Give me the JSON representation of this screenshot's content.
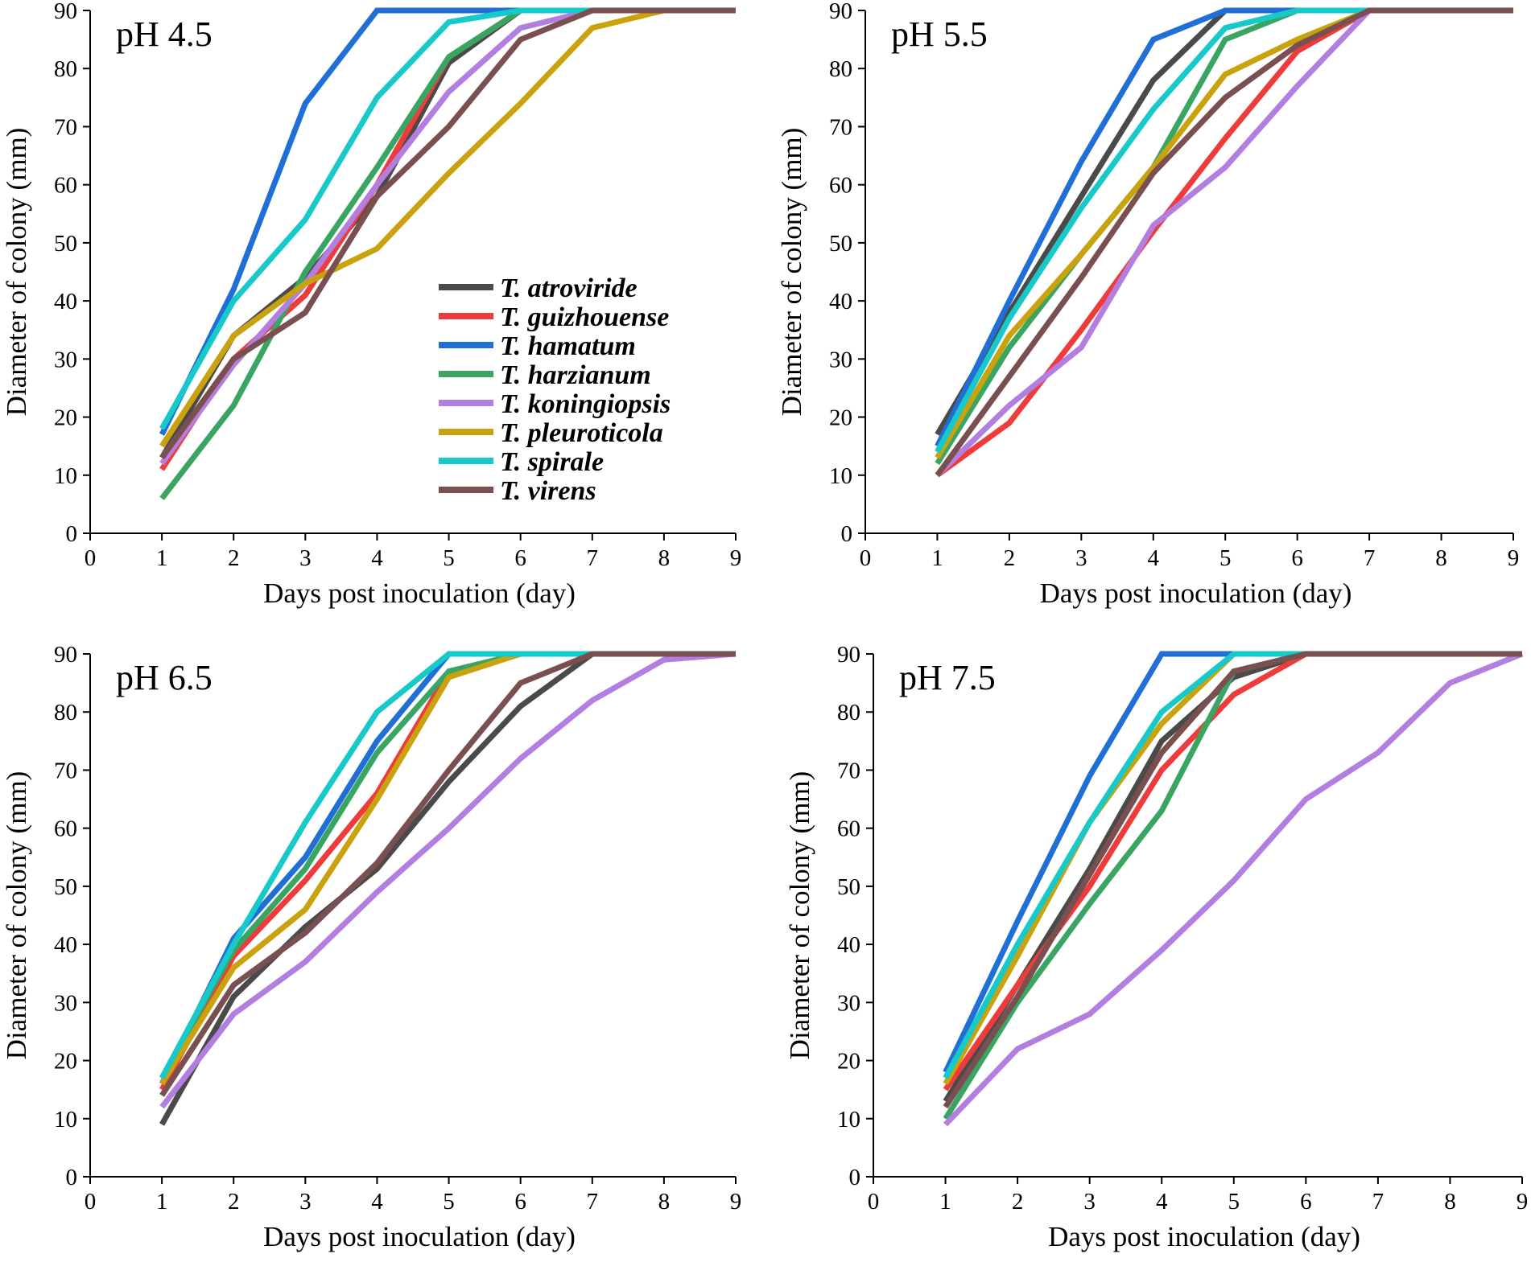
{
  "chart_data": [
    {
      "type": "line",
      "title": "pH 4.5",
      "xlabel": "Days post inoculation (day)",
      "ylabel": "Diameter of colony (mm)",
      "x": [
        1,
        2,
        3,
        4,
        5,
        6,
        7,
        8,
        9
      ],
      "xlim": [
        0,
        9
      ],
      "ylim": [
        0,
        90
      ],
      "xticks": [
        "0",
        "1",
        "2",
        "3",
        "4",
        "5",
        "6",
        "7",
        "8",
        "9"
      ],
      "yticks": [
        "0",
        "10",
        "20",
        "30",
        "40",
        "50",
        "60",
        "70",
        "80",
        "90"
      ],
      "series": [
        {
          "name": "T. atroviride",
          "color": "#4a4a4a",
          "values": [
            13,
            34,
            44,
            58,
            81,
            90,
            90,
            90,
            90
          ]
        },
        {
          "name": "T. guizhouense",
          "color": "#ee3b3b",
          "values": [
            11,
            30,
            41,
            60,
            82,
            90,
            90,
            90,
            90
          ]
        },
        {
          "name": "T. hamatum",
          "color": "#1f6fd6",
          "values": [
            17,
            42,
            74,
            90,
            90,
            90,
            90,
            90,
            90
          ]
        },
        {
          "name": "T. harzianum",
          "color": "#3aa563",
          "values": [
            6,
            22,
            45,
            63,
            82,
            90,
            90,
            90,
            90
          ]
        },
        {
          "name": "T. koningiopsis",
          "color": "#b27ee0",
          "values": [
            12,
            29,
            43,
            60,
            76,
            87,
            90,
            90,
            90
          ]
        },
        {
          "name": "T. pleuroticola",
          "color": "#c9a20e",
          "values": [
            15,
            34,
            43,
            49,
            62,
            74,
            87,
            90,
            90
          ]
        },
        {
          "name": "T. spirale",
          "color": "#17c9c9",
          "values": [
            18,
            40,
            54,
            75,
            88,
            90,
            90,
            90,
            90
          ]
        },
        {
          "name": "T. virens",
          "color": "#7a4f4f",
          "values": [
            13,
            30,
            38,
            58,
            70,
            85,
            90,
            90,
            90
          ]
        }
      ]
    },
    {
      "type": "line",
      "title": "pH 5.5",
      "xlabel": "Days post inoculation (day)",
      "ylabel": "Diameter of colony (mm)",
      "x": [
        1,
        2,
        3,
        4,
        5,
        6,
        7,
        8,
        9
      ],
      "xlim": [
        0,
        9
      ],
      "ylim": [
        0,
        90
      ],
      "xticks": [
        "0",
        "1",
        "2",
        "3",
        "4",
        "5",
        "6",
        "7",
        "8",
        "9"
      ],
      "yticks": [
        "0",
        "10",
        "20",
        "30",
        "40",
        "50",
        "60",
        "70",
        "80",
        "90"
      ],
      "series": [
        {
          "name": "T. atroviride",
          "color": "#4a4a4a",
          "values": [
            17,
            38,
            58,
            78,
            90,
            90,
            90,
            90,
            90
          ]
        },
        {
          "name": "T. guizhouense",
          "color": "#ee3b3b",
          "values": [
            10,
            19,
            35,
            52,
            68,
            83,
            90,
            90,
            90
          ]
        },
        {
          "name": "T. hamatum",
          "color": "#1f6fd6",
          "values": [
            15,
            40,
            64,
            85,
            90,
            90,
            90,
            90,
            90
          ]
        },
        {
          "name": "T. harzianum",
          "color": "#3aa563",
          "values": [
            12,
            32,
            48,
            63,
            85,
            90,
            90,
            90,
            90
          ]
        },
        {
          "name": "T. koningiopsis",
          "color": "#b27ee0",
          "values": [
            10,
            22,
            32,
            53,
            63,
            77,
            90,
            90,
            90
          ]
        },
        {
          "name": "T. pleuroticola",
          "color": "#c9a20e",
          "values": [
            13,
            34,
            48,
            63,
            79,
            85,
            90,
            90,
            90
          ]
        },
        {
          "name": "T. spirale",
          "color": "#17c9c9",
          "values": [
            14,
            37,
            56,
            73,
            87,
            90,
            90,
            90,
            90
          ]
        },
        {
          "name": "T. virens",
          "color": "#7a4f4f",
          "values": [
            10,
            27,
            44,
            62,
            75,
            84,
            90,
            90,
            90
          ]
        }
      ]
    },
    {
      "type": "line",
      "title": "pH 6.5",
      "xlabel": "Days post inoculation (day)",
      "ylabel": "Diameter of colony (mm)",
      "x": [
        1,
        2,
        3,
        4,
        5,
        6,
        7,
        8,
        9
      ],
      "xlim": [
        0,
        9
      ],
      "ylim": [
        0,
        90
      ],
      "xticks": [
        "0",
        "1",
        "2",
        "3",
        "4",
        "5",
        "6",
        "7",
        "8",
        "9"
      ],
      "yticks": [
        "0",
        "10",
        "20",
        "30",
        "40",
        "50",
        "60",
        "70",
        "80",
        "90"
      ],
      "series": [
        {
          "name": "T. atroviride",
          "color": "#4a4a4a",
          "values": [
            9,
            31,
            43,
            53,
            68,
            81,
            90,
            90,
            90
          ]
        },
        {
          "name": "T. guizhouense",
          "color": "#ee3b3b",
          "values": [
            15,
            38,
            51,
            66,
            87,
            90,
            90,
            90,
            90
          ]
        },
        {
          "name": "T. hamatum",
          "color": "#1f6fd6",
          "values": [
            16,
            41,
            55,
            75,
            90,
            90,
            90,
            90,
            90
          ]
        },
        {
          "name": "T. harzianum",
          "color": "#3aa563",
          "values": [
            17,
            39,
            53,
            73,
            87,
            90,
            90,
            90,
            90
          ]
        },
        {
          "name": "T. koningiopsis",
          "color": "#b27ee0",
          "values": [
            12,
            28,
            37,
            49,
            60,
            72,
            82,
            89,
            90
          ]
        },
        {
          "name": "T. pleuroticola",
          "color": "#c9a20e",
          "values": [
            16,
            36,
            46,
            65,
            86,
            90,
            90,
            90,
            90
          ]
        },
        {
          "name": "T. spirale",
          "color": "#17c9c9",
          "values": [
            17,
            40,
            61,
            80,
            90,
            90,
            90,
            90,
            90
          ]
        },
        {
          "name": "T. virens",
          "color": "#7a4f4f",
          "values": [
            14,
            33,
            42,
            54,
            70,
            85,
            90,
            90,
            90
          ]
        }
      ]
    },
    {
      "type": "line",
      "title": "pH 7.5",
      "xlabel": "Days post inoculation (day)",
      "ylabel": "Diameter of colony (mm)",
      "x": [
        1,
        2,
        3,
        4,
        5,
        6,
        7,
        8,
        9
      ],
      "xlim": [
        0,
        9
      ],
      "ylim": [
        0,
        90
      ],
      "xticks": [
        "0",
        "1",
        "2",
        "3",
        "4",
        "5",
        "6",
        "7",
        "8",
        "9"
      ],
      "yticks": [
        "0",
        "10",
        "20",
        "30",
        "40",
        "50",
        "60",
        "70",
        "80",
        "90"
      ],
      "series": [
        {
          "name": "T. atroviride",
          "color": "#4a4a4a",
          "values": [
            13,
            33,
            53,
            75,
            86,
            90,
            90,
            90,
            90
          ]
        },
        {
          "name": "T. guizhouense",
          "color": "#ee3b3b",
          "values": [
            15,
            33,
            50,
            70,
            83,
            90,
            90,
            90,
            90
          ]
        },
        {
          "name": "T. hamatum",
          "color": "#1f6fd6",
          "values": [
            18,
            44,
            69,
            90,
            90,
            90,
            90,
            90,
            90
          ]
        },
        {
          "name": "T. harzianum",
          "color": "#3aa563",
          "values": [
            10,
            30,
            47,
            63,
            87,
            90,
            90,
            90,
            90
          ]
        },
        {
          "name": "T. koningiopsis",
          "color": "#b27ee0",
          "values": [
            9,
            22,
            28,
            39,
            51,
            65,
            73,
            85,
            90
          ]
        },
        {
          "name": "T. pleuroticola",
          "color": "#c9a20e",
          "values": [
            16,
            38,
            61,
            78,
            90,
            90,
            90,
            90,
            90
          ]
        },
        {
          "name": "T. spirale",
          "color": "#17c9c9",
          "values": [
            17,
            40,
            61,
            80,
            90,
            90,
            90,
            90,
            90
          ]
        },
        {
          "name": "T. virens",
          "color": "#7a4f4f",
          "values": [
            12,
            31,
            52,
            73,
            87,
            90,
            90,
            90,
            90
          ]
        }
      ]
    }
  ]
}
